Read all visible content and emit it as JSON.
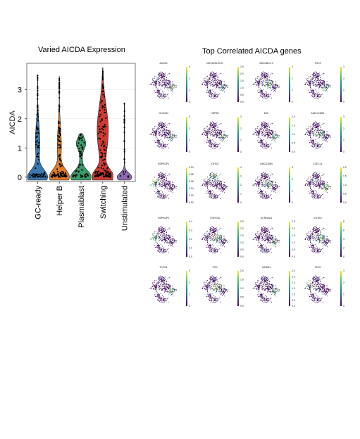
{
  "violin_title": "Varied AICDA Expression",
  "umap_title": "Top Correlated AICDA genes",
  "chart_data": [
    {
      "type": "violin",
      "title": "Varied AICDA Expression",
      "xlabel": "",
      "ylabel": "AICDA",
      "ylim": [
        -0.15,
        3.9
      ],
      "yticks": [
        0,
        1,
        2,
        3
      ],
      "grid": true,
      "categories": [
        "GC-ready",
        "Helper B",
        "Plasmablast",
        "Switching",
        "Unstimulated"
      ],
      "colors": [
        "#3a78b0",
        "#e07b2a",
        "#3a9a6a",
        "#cf3b34",
        "#8e6ab3"
      ],
      "max_values": [
        3.5,
        3.45,
        1.5,
        3.75,
        2.55
      ]
    },
    {
      "type": "scatter",
      "title": "Top Correlated AICDA genes",
      "layout": "grid-5x4",
      "colormap": "viridis",
      "panels": [
        {
          "gene": "AICDA",
          "cb_ticks": [
            "3",
            "2",
            "1",
            "0"
          ]
        },
        {
          "gene": "MIR4435-2HG",
          "cb_ticks": [
            "2.5",
            "2.0",
            "1.5",
            "1.0",
            "0.5",
            "0.0"
          ]
        },
        {
          "gene": "ADD1BD2.3",
          "cb_ticks": [
            "3",
            "2",
            "1",
            "0"
          ]
        },
        {
          "gene": "TOX2",
          "cb_ticks": [
            "3",
            "2",
            "1",
            "0"
          ]
        },
        {
          "gene": "GCSAM",
          "cb_ticks": [
            "3",
            "2",
            "1",
            "0"
          ]
        },
        {
          "gene": "HSPB1",
          "cb_ticks": [
            "3",
            "2",
            "1",
            "0"
          ]
        },
        {
          "gene": "MIC",
          "cb_ticks": [
            "2.0",
            "1.5",
            "1.0",
            "0.5",
            "0.0"
          ]
        },
        {
          "gene": "ADD1CDB1",
          "cb_ticks": [
            "3",
            "2",
            "1",
            "0"
          ]
        },
        {
          "gene": "HSPB1P1",
          "cb_ticks": [
            "0.10",
            "0.08",
            "0.06",
            "0.04",
            "0.02",
            "0.00"
          ]
        },
        {
          "gene": "IGHG2",
          "cb_ticks": [
            "4",
            "3",
            "2",
            "1",
            "0"
          ]
        },
        {
          "gene": "LINC01660",
          "cb_ticks": [
            "3",
            "2",
            "1",
            "0"
          ]
        },
        {
          "gene": "CLECL1",
          "cb_ticks": [
            "2.0",
            "1.5",
            "1.0",
            "0.5",
            "0.0"
          ]
        },
        {
          "gene": "HSPB1P2",
          "cb_ticks": [
            "0.4",
            "0.3",
            "0.2",
            "0.1",
            "0.0"
          ]
        },
        {
          "gene": "TNFSSA",
          "cb_ticks": [
            "2.5",
            "2.0",
            "1.5",
            "1.0",
            "0.5",
            "0.0"
          ]
        },
        {
          "gene": "SCNN4A1",
          "cb_ticks": [
            "2.5",
            "2.0",
            "1.5",
            "1.0",
            "0.5",
            "0.0"
          ]
        },
        {
          "gene": "IGHG3",
          "cb_ticks": [
            "8",
            "6",
            "4",
            "2",
            "0"
          ]
        },
        {
          "gene": "TCTN1",
          "cb_ticks": [
            "3",
            "2",
            "1",
            "0"
          ]
        },
        {
          "gene": "TOX",
          "cb_ticks": [
            "2.0",
            "1.5",
            "1.0",
            "0.5",
            "0.0"
          ]
        },
        {
          "gene": "CADM1",
          "cb_ticks": [
            "3.0",
            "2.5",
            "2.0",
            "1.5",
            "1.0",
            "0.5",
            "0.0"
          ]
        },
        {
          "gene": "IRX3",
          "cb_ticks": [
            "3",
            "2",
            "1",
            "0"
          ]
        }
      ]
    }
  ]
}
